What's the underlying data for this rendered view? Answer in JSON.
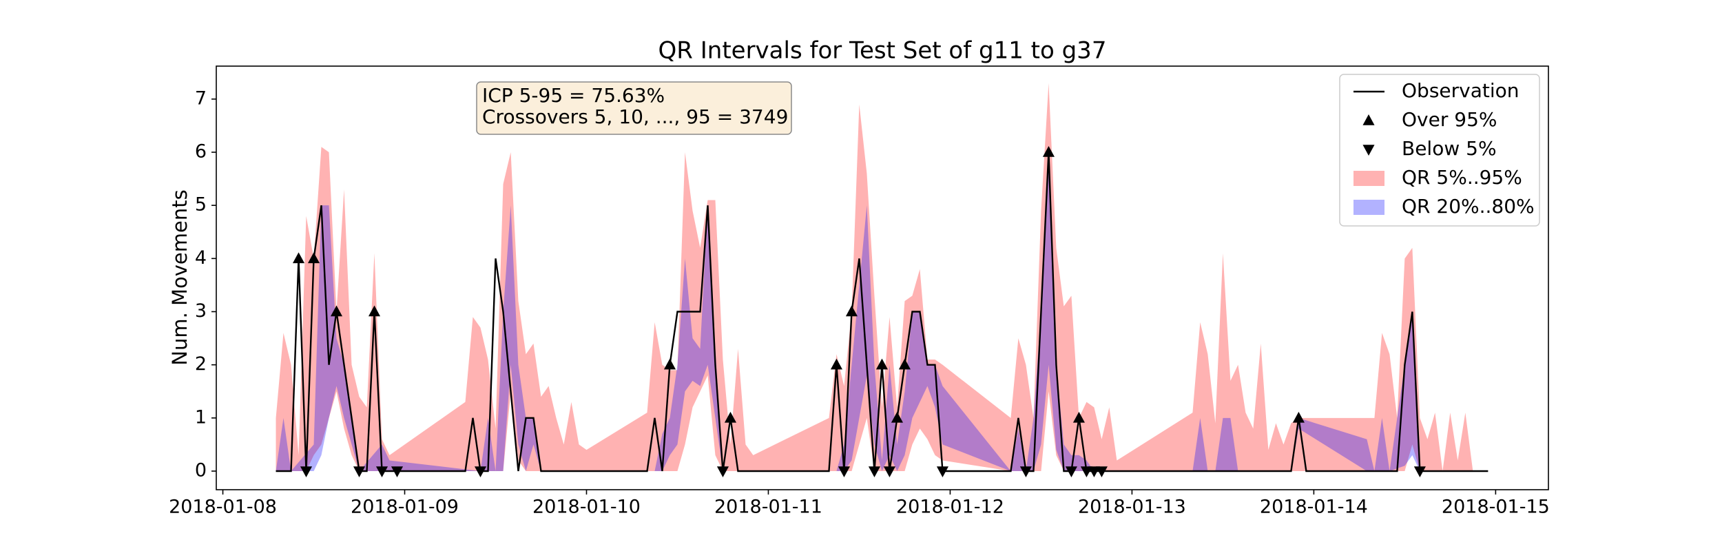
{
  "chart_data": {
    "type": "line",
    "title": "QR Intervals for Test Set of g11 to g37",
    "ylabel": "Num. Movements",
    "xlim": [
      "2018-01-07T23:08",
      "2018-01-15T06:58"
    ],
    "ylim": [
      -0.35,
      7.62
    ],
    "xticks": [
      "2018-01-08",
      "2018-01-09",
      "2018-01-10",
      "2018-01-11",
      "2018-01-12",
      "2018-01-13",
      "2018-01-14",
      "2018-01-15"
    ],
    "yticks": [
      0,
      1,
      2,
      3,
      4,
      5,
      6,
      7
    ],
    "legend": "upper right",
    "annotation": [
      "ICP 5-95 = 75.63%",
      "Crossovers 5, 10, ..., 95 = 3749"
    ],
    "series": [
      {
        "name": "QR 5%..95%",
        "type": "band",
        "color": "#ff0000",
        "alpha": 0.3,
        "x": [
          "2018-01-08T07:00",
          "2018-01-08T08:00",
          "2018-01-08T09:00",
          "2018-01-08T10:00",
          "2018-01-08T11:00",
          "2018-01-08T12:00",
          "2018-01-08T13:00",
          "2018-01-08T14:00",
          "2018-01-08T15:00",
          "2018-01-08T16:00",
          "2018-01-08T17:00",
          "2018-01-08T18:00",
          "2018-01-08T19:00",
          "2018-01-08T20:00",
          "2018-01-08T21:00",
          "2018-01-08T22:00",
          "2018-01-09T08:00",
          "2018-01-09T09:00",
          "2018-01-09T10:00",
          "2018-01-09T11:00",
          "2018-01-09T12:00",
          "2018-01-09T13:00",
          "2018-01-09T14:00",
          "2018-01-09T15:00",
          "2018-01-09T16:00",
          "2018-01-09T17:00",
          "2018-01-09T18:00",
          "2018-01-09T19:00",
          "2018-01-09T20:00",
          "2018-01-09T21:00",
          "2018-01-09T22:00",
          "2018-01-09T23:00",
          "2018-01-10T00:00",
          "2018-01-10T08:00",
          "2018-01-10T09:00",
          "2018-01-10T10:00",
          "2018-01-10T11:00",
          "2018-01-10T12:00",
          "2018-01-10T13:00",
          "2018-01-10T14:00",
          "2018-01-10T15:00",
          "2018-01-10T16:00",
          "2018-01-10T17:00",
          "2018-01-10T18:00",
          "2018-01-10T19:00",
          "2018-01-10T20:00",
          "2018-01-10T21:00",
          "2018-01-10T22:00",
          "2018-01-11T08:00",
          "2018-01-11T09:00",
          "2018-01-11T10:00",
          "2018-01-11T11:00",
          "2018-01-11T12:00",
          "2018-01-11T13:00",
          "2018-01-11T14:00",
          "2018-01-11T15:00",
          "2018-01-11T16:00",
          "2018-01-11T17:00",
          "2018-01-11T18:00",
          "2018-01-11T19:00",
          "2018-01-11T20:00",
          "2018-01-11T21:00",
          "2018-01-11T22:00",
          "2018-01-11T23:00",
          "2018-01-12T08:00",
          "2018-01-12T09:00",
          "2018-01-12T10:00",
          "2018-01-12T11:00",
          "2018-01-12T12:00",
          "2018-01-12T13:00",
          "2018-01-12T14:00",
          "2018-01-12T15:00",
          "2018-01-12T16:00",
          "2018-01-12T17:00",
          "2018-01-12T18:00",
          "2018-01-12T19:00",
          "2018-01-12T20:00",
          "2018-01-12T21:00",
          "2018-01-12T22:00",
          "2018-01-13T08:00",
          "2018-01-13T09:00",
          "2018-01-13T10:00",
          "2018-01-13T11:00",
          "2018-01-13T12:00",
          "2018-01-13T13:00",
          "2018-01-13T14:00",
          "2018-01-13T15:00",
          "2018-01-13T16:00",
          "2018-01-13T17:00",
          "2018-01-13T18:00",
          "2018-01-13T19:00",
          "2018-01-13T20:00",
          "2018-01-13T21:00",
          "2018-01-13T22:00",
          "2018-01-13T23:00",
          "2018-01-14T08:00",
          "2018-01-14T09:00",
          "2018-01-14T10:00",
          "2018-01-14T11:00",
          "2018-01-14T12:00",
          "2018-01-14T13:00",
          "2018-01-14T14:00",
          "2018-01-14T15:00",
          "2018-01-14T16:00",
          "2018-01-14T17:00",
          "2018-01-14T18:00",
          "2018-01-14T19:00",
          "2018-01-14T20:00",
          "2018-01-14T21:00"
        ],
        "upper": [
          1,
          2.6,
          2,
          0.3,
          4.8,
          4,
          6.1,
          6,
          3,
          5.3,
          2,
          1.4,
          1.2,
          4.1,
          0.6,
          0.3,
          1.3,
          2.9,
          2.7,
          2.1,
          0.8,
          5.4,
          6,
          3.2,
          2.2,
          2.4,
          1.4,
          1.6,
          1,
          0.5,
          1.3,
          0.5,
          0.4,
          1.1,
          2.8,
          2,
          1.9,
          1.9,
          6,
          4.9,
          4.2,
          5.1,
          5.1,
          2.1,
          0.5,
          2.3,
          0.5,
          0.3,
          1,
          2.2,
          1.6,
          3,
          6.9,
          5.6,
          3.3,
          1.2,
          2.9,
          1.2,
          3.2,
          3.3,
          3.8,
          2.1,
          2.1,
          2,
          1,
          2.5,
          2,
          1,
          4.9,
          7.3,
          4.2,
          3.1,
          3.3,
          1,
          1.3,
          1.2,
          0.6,
          1.2,
          0.2,
          1.1,
          2.8,
          2.2,
          0.9,
          4.1,
          1.7,
          2,
          1.1,
          0.8,
          2.4,
          0.4,
          0.9,
          0.5,
          0.9,
          1,
          1,
          1,
          2.6,
          2.2,
          1,
          4,
          4.2,
          1,
          0.6,
          1.1,
          0,
          1.1,
          0.2,
          1.1,
          0
        ],
        "lower": [
          0,
          0,
          0,
          0,
          0,
          0.3,
          0.5,
          1,
          1.5,
          0.8,
          0.3,
          0,
          0,
          0,
          0,
          0,
          0,
          0,
          0,
          0,
          0,
          0,
          1.5,
          0.2,
          0,
          0,
          0,
          0,
          0,
          0,
          0,
          0,
          0,
          0,
          0,
          0,
          0,
          0,
          0.5,
          1.2,
          1.5,
          1.8,
          0.3,
          0,
          0,
          0,
          0,
          0,
          0,
          0,
          0,
          0,
          0.5,
          1,
          0,
          0,
          0,
          0,
          0,
          0.5,
          0.8,
          0.6,
          0.3,
          0.2,
          0,
          0,
          0,
          0,
          0,
          1.5,
          0.3,
          0,
          0,
          0,
          0,
          0,
          0,
          0,
          0,
          0,
          0,
          0,
          0,
          0,
          0,
          0,
          0,
          0,
          0,
          0,
          0,
          0,
          0,
          0,
          0,
          0,
          0,
          0,
          0,
          0,
          0.5,
          0,
          0,
          0,
          0,
          0,
          0,
          0,
          0
        ]
      },
      {
        "name": "QR 20%..80%",
        "type": "band",
        "color": "#0000ff",
        "alpha": 0.3,
        "x": [
          "2018-01-08T07:00",
          "2018-01-08T08:00",
          "2018-01-08T09:00",
          "2018-01-08T12:00",
          "2018-01-08T13:00",
          "2018-01-08T14:00",
          "2018-01-08T15:00",
          "2018-01-08T16:00",
          "2018-01-08T17:00",
          "2018-01-08T18:00",
          "2018-01-08T21:00",
          "2018-01-08T22:00",
          "2018-01-09T10:00",
          "2018-01-09T11:00",
          "2018-01-09T12:00",
          "2018-01-09T13:00",
          "2018-01-09T14:00",
          "2018-01-09T15:00",
          "2018-01-09T16:00",
          "2018-01-09T17:00",
          "2018-01-09T18:00",
          "2018-01-10T09:00",
          "2018-01-10T10:00",
          "2018-01-10T11:00",
          "2018-01-10T12:00",
          "2018-01-10T13:00",
          "2018-01-10T14:00",
          "2018-01-10T15:00",
          "2018-01-10T16:00",
          "2018-01-10T17:00",
          "2018-01-10T18:00",
          "2018-01-11T09:00",
          "2018-01-11T10:00",
          "2018-01-11T11:00",
          "2018-01-11T12:00",
          "2018-01-11T13:00",
          "2018-01-11T14:00",
          "2018-01-11T15:00",
          "2018-01-11T16:00",
          "2018-01-11T17:00",
          "2018-01-11T18:00",
          "2018-01-11T19:00",
          "2018-01-11T20:00",
          "2018-01-11T21:00",
          "2018-01-11T22:00",
          "2018-01-11T23:00",
          "2018-01-12T08:00",
          "2018-01-12T09:00",
          "2018-01-12T10:00",
          "2018-01-12T11:00",
          "2018-01-12T12:00",
          "2018-01-12T13:00",
          "2018-01-12T14:00",
          "2018-01-12T15:00",
          "2018-01-12T16:00",
          "2018-01-12T17:00",
          "2018-01-12T18:00",
          "2018-01-12T19:00",
          "2018-01-13T08:00",
          "2018-01-13T09:00",
          "2018-01-13T10:00",
          "2018-01-13T11:00",
          "2018-01-13T12:00",
          "2018-01-13T13:00",
          "2018-01-13T14:00",
          "2018-01-13T21:00",
          "2018-01-13T22:00",
          "2018-01-14T07:00",
          "2018-01-14T08:00",
          "2018-01-14T09:00",
          "2018-01-14T10:00",
          "2018-01-14T12:00",
          "2018-01-14T13:00",
          "2018-01-14T14:00"
        ],
        "upper": [
          0,
          1,
          0,
          0.5,
          5,
          5,
          2.5,
          2,
          1,
          0,
          0.5,
          0.2,
          0,
          1,
          0,
          3,
          5,
          2,
          1,
          1,
          0,
          0,
          0.7,
          1,
          2,
          4,
          2.5,
          2.3,
          5,
          2.3,
          0,
          0,
          0.5,
          2,
          3.5,
          5,
          2,
          0.2,
          2,
          0.5,
          1.5,
          3,
          3,
          2,
          2,
          1.6,
          0,
          0.8,
          0,
          1,
          3,
          5.8,
          2,
          0.5,
          0.3,
          0.3,
          0.2,
          0,
          0,
          1,
          0,
          0,
          1,
          1,
          0,
          0,
          1,
          0.6,
          0,
          1,
          0,
          2,
          3,
          0
        ],
        "lower": [
          0,
          0,
          0,
          0,
          0.3,
          1,
          1.6,
          1,
          0.5,
          0,
          0,
          0,
          0,
          0,
          0,
          0,
          2,
          0.5,
          0,
          0.5,
          0,
          0,
          0,
          0.3,
          0.5,
          1.5,
          1.7,
          1.6,
          2,
          1,
          0,
          0,
          0,
          0.2,
          1,
          1.8,
          0.5,
          0,
          0.3,
          0,
          0.3,
          1,
          1.3,
          1.6,
          1.2,
          0.5,
          0,
          0,
          0,
          0,
          0.5,
          2,
          0.4,
          0,
          0,
          0,
          0,
          0,
          0,
          0,
          0,
          0,
          0,
          0,
          0,
          0,
          0.8,
          0,
          0,
          0,
          0,
          0.1,
          0.3,
          0
        ]
      },
      {
        "name": "Observation",
        "type": "line",
        "color": "#000000",
        "x": [
          "2018-01-08T07:00",
          "2018-01-08T09:00",
          "2018-01-08T10:00",
          "2018-01-08T11:00",
          "2018-01-08T12:00",
          "2018-01-08T13:00",
          "2018-01-08T14:00",
          "2018-01-08T15:00",
          "2018-01-08T16:00",
          "2018-01-08T18:00",
          "2018-01-08T19:00",
          "2018-01-08T20:00",
          "2018-01-08T21:00",
          "2018-01-08T23:00",
          "2018-01-09T08:00",
          "2018-01-09T09:00",
          "2018-01-09T10:00",
          "2018-01-09T11:00",
          "2018-01-09T12:00",
          "2018-01-09T13:00",
          "2018-01-09T15:00",
          "2018-01-09T16:00",
          "2018-01-09T17:00",
          "2018-01-09T18:00",
          "2018-01-10T08:00",
          "2018-01-10T09:00",
          "2018-01-10T10:00",
          "2018-01-10T11:00",
          "2018-01-10T12:00",
          "2018-01-10T15:00",
          "2018-01-10T16:00",
          "2018-01-10T17:00",
          "2018-01-10T18:00",
          "2018-01-10T19:00",
          "2018-01-10T20:00",
          "2018-01-11T08:00",
          "2018-01-11T09:00",
          "2018-01-11T10:00",
          "2018-01-11T11:00",
          "2018-01-11T12:00",
          "2018-01-11T13:00",
          "2018-01-11T14:00",
          "2018-01-11T15:00",
          "2018-01-11T16:00",
          "2018-01-11T17:00",
          "2018-01-11T18:00",
          "2018-01-11T19:00",
          "2018-01-11T20:00",
          "2018-01-11T21:00",
          "2018-01-11T22:00",
          "2018-01-11T23:00",
          "2018-01-12T08:00",
          "2018-01-12T09:00",
          "2018-01-12T10:00",
          "2018-01-12T11:00",
          "2018-01-12T12:00",
          "2018-01-12T13:00",
          "2018-01-12T14:00",
          "2018-01-12T15:00",
          "2018-01-12T16:00",
          "2018-01-12T17:00",
          "2018-01-12T18:00",
          "2018-01-12T20:00",
          "2018-01-13T21:00",
          "2018-01-13T22:00",
          "2018-01-13T23:00",
          "2018-01-14T11:00",
          "2018-01-14T12:00",
          "2018-01-14T13:00",
          "2018-01-14T14:00",
          "2018-01-14T23:00"
        ],
        "values": [
          0,
          0,
          4,
          0,
          4,
          5,
          2,
          3,
          2,
          0,
          0,
          3,
          0,
          0,
          0,
          1,
          0,
          0,
          4,
          3,
          0,
          1,
          1,
          0,
          0,
          1,
          0,
          2,
          3,
          3,
          5,
          2,
          0,
          1,
          0,
          0,
          2,
          0,
          3,
          4,
          2,
          0,
          2,
          0,
          1,
          2,
          3,
          3,
          2,
          2,
          0,
          0,
          1,
          0,
          0,
          3,
          6,
          2,
          0,
          0,
          1,
          0,
          0,
          0,
          1,
          0,
          0,
          2,
          3,
          0,
          0
        ]
      },
      {
        "name": "Over 95%",
        "type": "scatter",
        "marker": "^",
        "color": "#000000",
        "x": [
          "2018-01-08T10:00",
          "2018-01-08T12:00",
          "2018-01-08T15:00",
          "2018-01-08T20:00",
          "2018-01-10T11:00",
          "2018-01-10T19:00",
          "2018-01-11T09:00",
          "2018-01-11T11:00",
          "2018-01-11T15:00",
          "2018-01-11T17:00",
          "2018-01-11T18:00",
          "2018-01-12T13:00",
          "2018-01-12T17:00",
          "2018-01-13T22:00"
        ],
        "values": [
          4,
          4,
          3,
          3,
          2,
          1,
          2,
          3,
          2,
          1,
          2,
          6,
          1,
          1
        ]
      },
      {
        "name": "Below 5%",
        "type": "scatter",
        "marker": "v",
        "color": "#000000",
        "x": [
          "2018-01-08T11:00",
          "2018-01-08T18:00",
          "2018-01-08T21:00",
          "2018-01-08T23:00",
          "2018-01-09T10:00",
          "2018-01-10T18:00",
          "2018-01-11T10:00",
          "2018-01-11T14:00",
          "2018-01-11T16:00",
          "2018-01-11T23:00",
          "2018-01-12T10:00",
          "2018-01-12T16:00",
          "2018-01-12T18:00",
          "2018-01-12T19:00",
          "2018-01-12T20:00",
          "2018-01-14T14:00"
        ],
        "values": [
          0,
          0,
          0,
          0,
          0,
          0,
          0,
          0,
          0,
          0,
          0,
          0,
          0,
          0,
          0,
          0
        ]
      }
    ],
    "legend_order": [
      2,
      3,
      4,
      0,
      1
    ]
  }
}
